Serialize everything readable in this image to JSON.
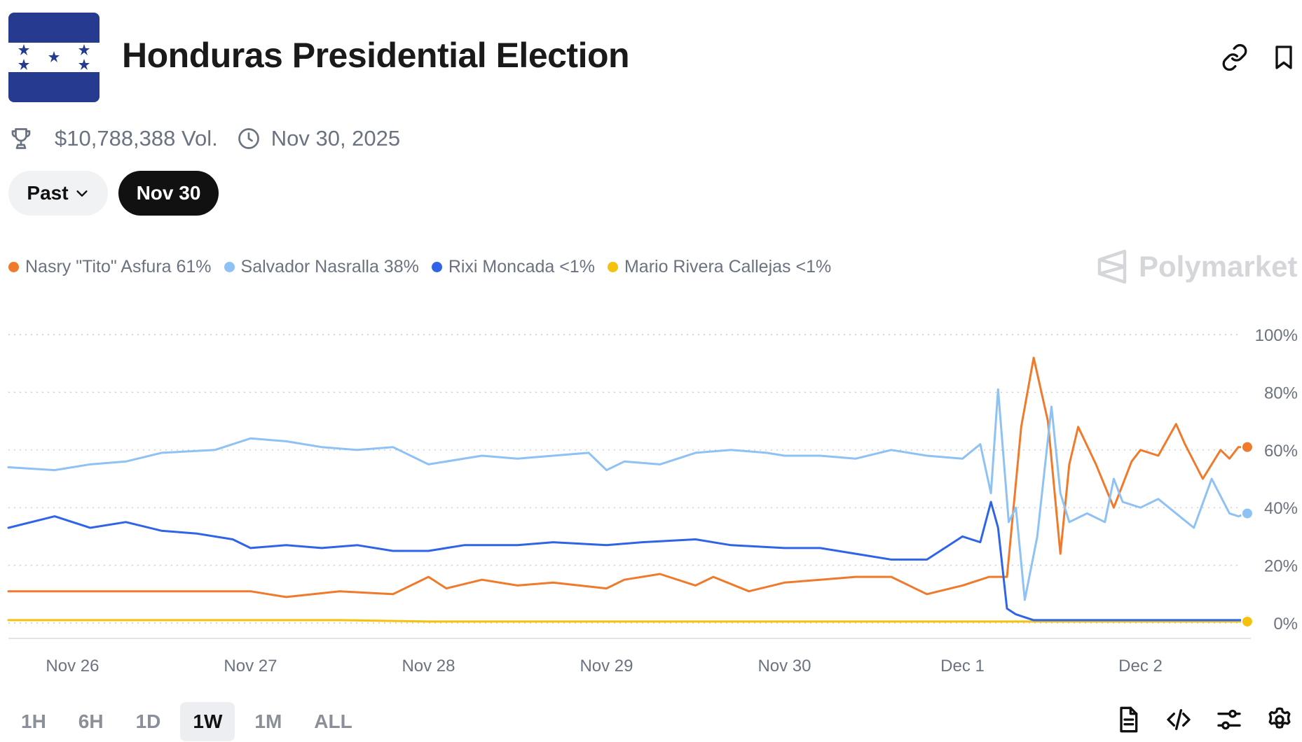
{
  "header": {
    "title": "Honduras Presidential Election",
    "volume": "$10,788,388 Vol.",
    "date": "Nov 30, 2025"
  },
  "filters": {
    "past_label": "Past",
    "selected_label": "Nov 30"
  },
  "brand": {
    "name": "Polymarket"
  },
  "legend": [
    {
      "label": "Nasry \"Tito\" Asfura 61%",
      "color": "#f07a2b"
    },
    {
      "label": "Salvador Nasralla 38%",
      "color": "#8ec1f4"
    },
    {
      "label": "Rixi Moncada <1%",
      "color": "#2f64e8"
    },
    {
      "label": "Mario Rivera Callejas <1%",
      "color": "#f4c20d"
    }
  ],
  "timeframes": {
    "items": [
      "1H",
      "6H",
      "1D",
      "1W",
      "1M",
      "ALL"
    ],
    "active": "1W"
  },
  "chart_data": {
    "type": "line",
    "title": "Honduras Presidential Election",
    "x_unit": "days since Nov 26 00:00",
    "xlim": [
      -0.36,
      6.62
    ],
    "ylim": [
      0,
      100
    ],
    "x_ticks": [
      {
        "label": "Nov 26",
        "x": 0
      },
      {
        "label": "Nov 27",
        "x": 1
      },
      {
        "label": "Nov 28",
        "x": 2
      },
      {
        "label": "Nov 29",
        "x": 3
      },
      {
        "label": "Nov 30",
        "x": 4
      },
      {
        "label": "Dec 1",
        "x": 5
      },
      {
        "label": "Dec 2",
        "x": 6
      }
    ],
    "y_ticks": [
      {
        "label": "0%",
        "value": 0
      },
      {
        "label": "20%",
        "value": 20
      },
      {
        "label": "40%",
        "value": 40
      },
      {
        "label": "60%",
        "value": 60
      },
      {
        "label": "80%",
        "value": 80
      },
      {
        "label": "100%",
        "value": 100
      }
    ],
    "grid": true,
    "legend_position": "top-left",
    "series": [
      {
        "name": "Nasry \"Tito\" Asfura",
        "color": "#f07a2b",
        "x": [
          -0.36,
          -0.1,
          0.1,
          0.5,
          1.0,
          1.2,
          1.5,
          1.8,
          2.0,
          2.1,
          2.3,
          2.5,
          2.7,
          3.0,
          3.1,
          3.3,
          3.5,
          3.6,
          3.8,
          4.0,
          4.2,
          4.4,
          4.6,
          4.8,
          5.0,
          5.15,
          5.25,
          5.33,
          5.4,
          5.48,
          5.55,
          5.6,
          5.65,
          5.75,
          5.85,
          5.95,
          6.0,
          6.1,
          6.2,
          6.25,
          6.35,
          6.45,
          6.5,
          6.55,
          6.6
        ],
        "y": [
          11,
          11,
          11,
          11,
          11,
          9,
          11,
          10,
          16,
          12,
          15,
          13,
          14,
          12,
          15,
          17,
          13,
          16,
          11,
          14,
          15,
          16,
          16,
          10,
          13,
          16,
          16,
          68,
          92,
          70,
          24,
          55,
          68,
          55,
          40,
          56,
          60,
          58,
          69,
          62,
          50,
          60,
          57,
          61,
          61
        ]
      },
      {
        "name": "Salvador Nasralla",
        "color": "#8ec1f4",
        "x": [
          -0.36,
          -0.1,
          0.1,
          0.3,
          0.5,
          0.8,
          1.0,
          1.2,
          1.4,
          1.6,
          1.8,
          2.0,
          2.3,
          2.5,
          2.7,
          2.9,
          3.0,
          3.1,
          3.3,
          3.5,
          3.7,
          3.9,
          4.0,
          4.2,
          4.4,
          4.6,
          4.8,
          5.0,
          5.1,
          5.16,
          5.2,
          5.26,
          5.3,
          5.35,
          5.42,
          5.5,
          5.55,
          5.6,
          5.7,
          5.8,
          5.85,
          5.9,
          6.0,
          6.1,
          6.2,
          6.3,
          6.4,
          6.5,
          6.55,
          6.6
        ],
        "y": [
          54,
          53,
          55,
          56,
          59,
          60,
          64,
          63,
          61,
          60,
          61,
          55,
          58,
          57,
          58,
          59,
          53,
          56,
          55,
          59,
          60,
          59,
          58,
          58,
          57,
          60,
          58,
          57,
          62,
          45,
          81,
          35,
          40,
          8,
          30,
          75,
          45,
          35,
          38,
          35,
          50,
          42,
          40,
          43,
          38,
          33,
          50,
          38,
          37,
          38
        ]
      },
      {
        "name": "Rixi Moncada",
        "color": "#2f64e8",
        "x": [
          -0.36,
          -0.1,
          0.1,
          0.3,
          0.5,
          0.7,
          0.9,
          1.0,
          1.2,
          1.4,
          1.6,
          1.8,
          2.0,
          2.2,
          2.5,
          2.7,
          3.0,
          3.2,
          3.5,
          3.7,
          4.0,
          4.2,
          4.4,
          4.6,
          4.8,
          5.0,
          5.1,
          5.16,
          5.2,
          5.25,
          5.3,
          5.35,
          5.4,
          5.5,
          6.0,
          6.6
        ],
        "y": [
          33,
          37,
          33,
          35,
          32,
          31,
          29,
          26,
          27,
          26,
          27,
          25,
          25,
          27,
          27,
          28,
          27,
          28,
          29,
          27,
          26,
          26,
          24,
          22,
          22,
          30,
          28,
          42,
          33,
          5,
          3,
          2,
          1,
          1,
          1,
          1
        ]
      },
      {
        "name": "Mario Rivera Callejas",
        "color": "#f4c20d",
        "x": [
          -0.36,
          0.5,
          1.0,
          1.5,
          2.0,
          3.0,
          4.0,
          5.0,
          6.0,
          6.6
        ],
        "y": [
          1,
          1,
          1,
          1,
          0.5,
          0.5,
          0.5,
          0.5,
          0.5,
          0.5
        ]
      }
    ]
  }
}
